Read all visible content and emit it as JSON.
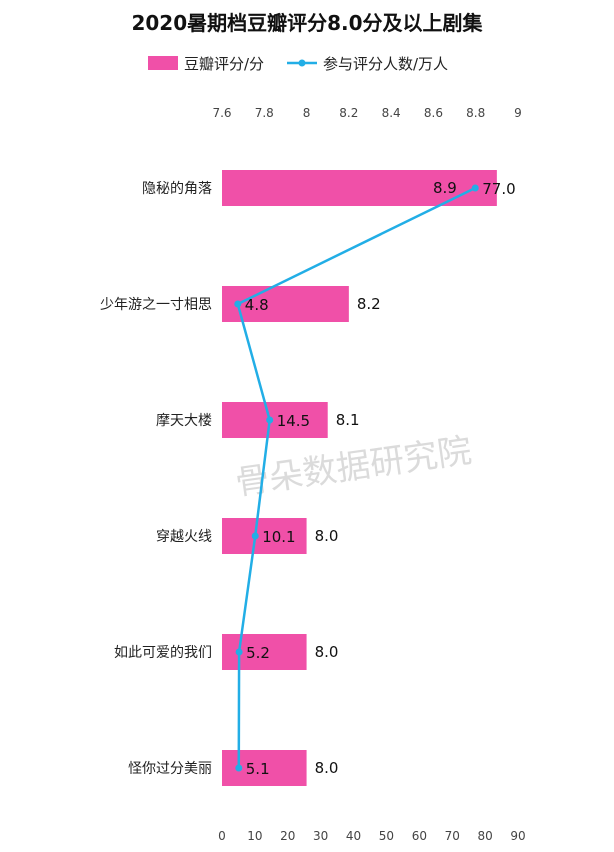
{
  "chart_data": {
    "type": "bar",
    "title": "2020暑期档豆瓣评分8.0分及以上剧集",
    "orientation": "horizontal",
    "categories": [
      "隐秘的角落",
      "少年游之一寸相思",
      "摩天大楼",
      "穿越火线",
      "如此可爱的我们",
      "怪你过分美丽"
    ],
    "series": [
      {
        "name": "豆瓣评分/分",
        "kind": "bar",
        "axis": "top",
        "values": [
          8.9,
          8.2,
          8.1,
          8.0,
          8.0,
          8.0
        ],
        "labels": [
          "8.9",
          "8.2",
          "8.1",
          "8.0",
          "8.0",
          "8.0"
        ]
      },
      {
        "name": "参与评分人数/万人",
        "kind": "line",
        "axis": "bottom",
        "values": [
          77.0,
          4.8,
          14.5,
          10.1,
          5.2,
          5.1
        ],
        "labels": [
          "77.0",
          "4.8",
          "14.5",
          "10.1",
          "5.2",
          "5.1"
        ]
      }
    ],
    "top_axis": {
      "range": [
        7.6,
        9.0
      ],
      "ticks": [
        7.6,
        7.8,
        8.0,
        8.2,
        8.4,
        8.6,
        8.8,
        9.0
      ],
      "tick_labels": [
        "7.6",
        "7.8",
        "8",
        "8.2",
        "8.4",
        "8.6",
        "8.8",
        "9"
      ]
    },
    "bottom_axis": {
      "range": [
        0,
        90
      ],
      "ticks": [
        0,
        10,
        20,
        30,
        40,
        50,
        60,
        70,
        80,
        90
      ],
      "tick_labels": [
        "0",
        "10",
        "20",
        "30",
        "40",
        "50",
        "60",
        "70",
        "80",
        "90"
      ]
    },
    "legend_position": "top-center",
    "grid": false,
    "colors": {
      "bar": "#f050a8",
      "line": "#22aee6"
    }
  },
  "watermark": "骨朵数据研究院"
}
